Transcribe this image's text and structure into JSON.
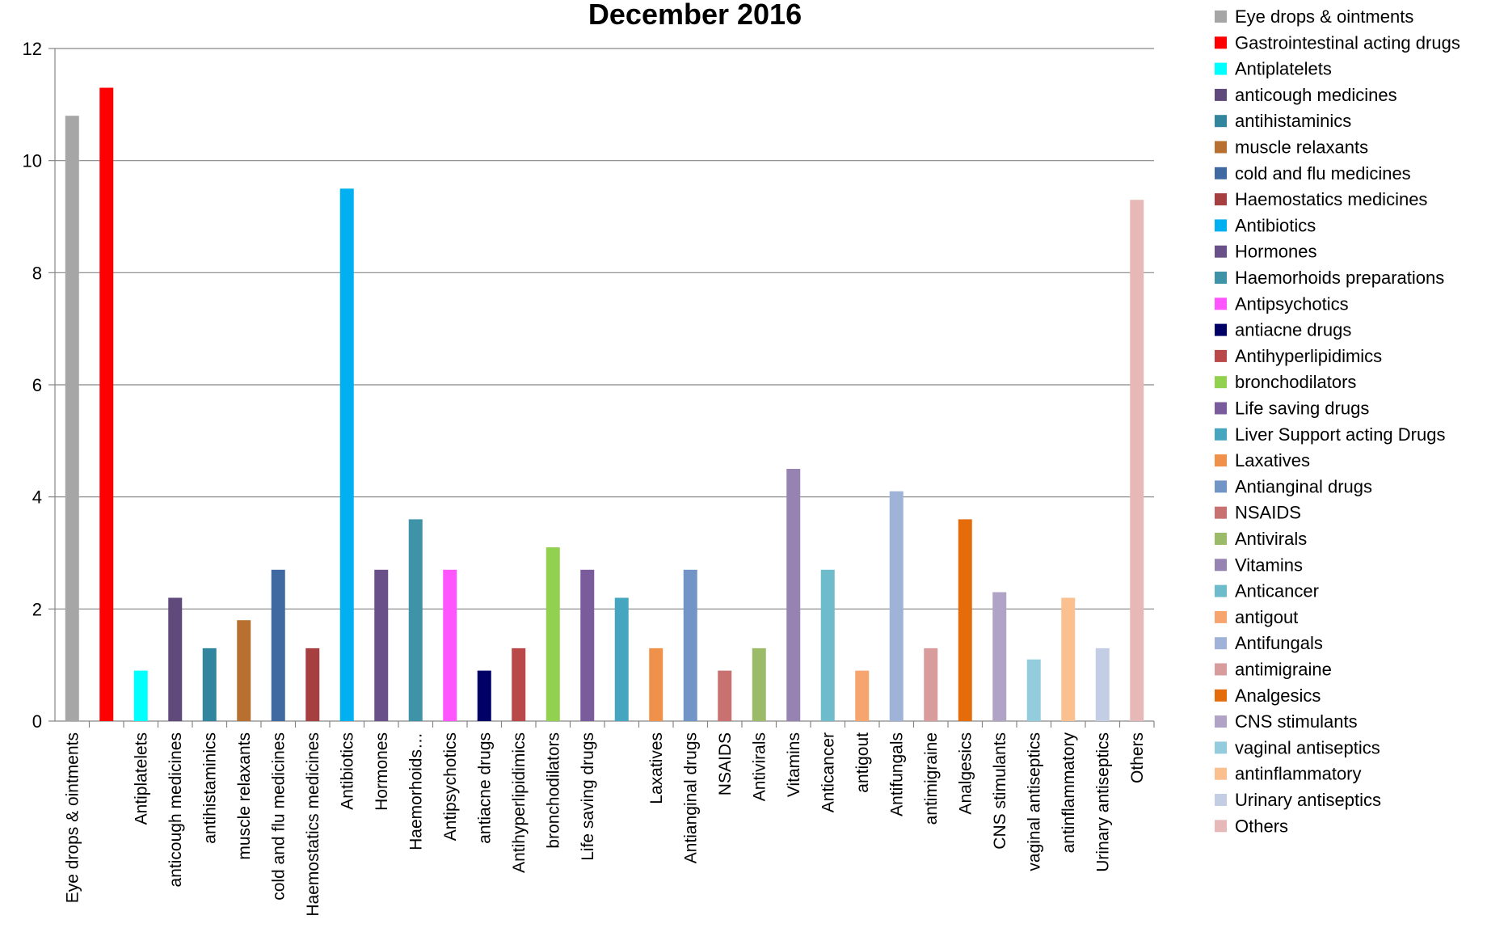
{
  "chart_data": {
    "type": "bar",
    "title": "December 2016",
    "xlabel": "",
    "ylabel": "",
    "ylim": [
      0,
      12
    ],
    "yticks": [
      0,
      2,
      4,
      6,
      8,
      10,
      12
    ],
    "grid": true,
    "legend_position": "right",
    "categories": [
      "Eye drops & ointments",
      "",
      "Antiplatelets",
      "anticough medicines",
      "antihistaminics",
      "muscle relaxants",
      "cold and flu medicines",
      "Haemostatics medicines",
      "Antibiotics",
      "Hormones",
      "Haemorhoids…",
      "Antipsychotics",
      "antiacne drugs",
      "Antihyperlipidimics",
      "bronchodilators",
      "Life saving drugs",
      "",
      "Laxatives",
      "Antianginal drugs",
      "NSAIDS",
      "Antivirals",
      "Vitamins",
      "Anticancer",
      "antigout",
      "Antifungals",
      "antimigraine",
      "Analgesics",
      "CNS stimulants",
      "vaginal antiseptics",
      "antinflammatory",
      "Urinary antiseptics",
      "Others"
    ],
    "values": [
      10.8,
      11.3,
      0.9,
      2.2,
      1.3,
      1.8,
      2.7,
      1.3,
      9.5,
      2.7,
      3.6,
      2.7,
      0.9,
      1.3,
      3.1,
      2.7,
      2.2,
      1.3,
      2.7,
      0.9,
      1.3,
      4.5,
      2.7,
      0.9,
      4.1,
      1.3,
      3.6,
      2.3,
      1.1,
      2.2,
      1.3,
      9.3
    ],
    "colors": [
      "#A6A6A6",
      "#FF0000",
      "#00FFFF",
      "#604A7B",
      "#31859C",
      "#B7702F",
      "#4069A1",
      "#A64040",
      "#00B0F0",
      "#6A5088",
      "#3E93A6",
      "#FF55FF",
      "#000066",
      "#B94848",
      "#92D050",
      "#7A5B9C",
      "#46A6C0",
      "#F0914B",
      "#7295C8",
      "#C97070",
      "#9CBB68",
      "#9783B2",
      "#6EBBCC",
      "#F7A56E",
      "#9FB2D7",
      "#D99C9C",
      "#E46C0A",
      "#B0A3C6",
      "#93CDDD",
      "#FAC090",
      "#C3CDE3",
      "#E6B9B8"
    ],
    "legend": [
      "Eye drops & ointments",
      "Gastrointestinal acting drugs",
      "Antiplatelets",
      "anticough medicines",
      "antihistaminics",
      "muscle relaxants",
      "cold and flu medicines",
      "Haemostatics medicines",
      "Antibiotics",
      "Hormones",
      "Haemorhoids preparations",
      "Antipsychotics",
      "antiacne drugs",
      "Antihyperlipidimics",
      "bronchodilators",
      "Life saving drugs",
      "Liver Support acting Drugs",
      "Laxatives",
      "Antianginal drugs",
      "NSAIDS",
      "Antivirals",
      "Vitamins",
      "Anticancer",
      "antigout",
      "Antifungals",
      "antimigraine",
      "Analgesics",
      "CNS stimulants",
      "vaginal antiseptics",
      "antinflammatory",
      "Urinary antiseptics",
      "Others"
    ]
  }
}
